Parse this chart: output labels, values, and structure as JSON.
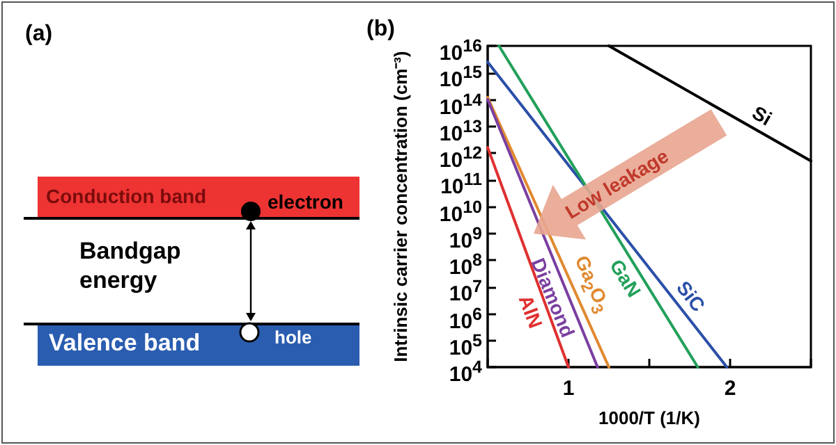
{
  "chart_data": [
    {
      "type": "other",
      "title": "(a)",
      "annotations": [
        "Conduction band",
        "electron",
        "Bandgap energy",
        "Valence band",
        "hole"
      ]
    },
    {
      "type": "line",
      "title": "(b)",
      "xlabel": "1000/T (1/K)",
      "ylabel": "Intrinsic carrier concentration (cm⁻³)",
      "log": "y",
      "grid": false,
      "legend": false,
      "marker": "none",
      "line_style": "solid",
      "xlim": [
        0.5,
        2.5
      ],
      "xticks": [
        {
          "value": 0.5,
          "label": null
        },
        1,
        {
          "value": 1.5,
          "label": null
        },
        2,
        {
          "value": 2.5,
          "label": null
        }
      ],
      "ylim": [
        10000,
        10000000000000000
      ],
      "yticks": [
        {
          "value": 10000,
          "label": "10$^{4}$"
        },
        {
          "value": 100000,
          "label": "10$^{5}$"
        },
        {
          "value": 1000000,
          "label": "10$^{6}$"
        },
        {
          "value": 10000000,
          "label": "10$^{7}$"
        },
        {
          "value": 100000000,
          "label": "10$^{8}$"
        },
        {
          "value": 1000000000,
          "label": "10$^{9}$"
        },
        {
          "value": 10000000000,
          "label": "10$^{10}$"
        },
        {
          "value": 100000000000,
          "label": "10$^{11}$"
        },
        {
          "value": 1000000000000,
          "label": "10$^{12}$"
        },
        {
          "value": 10000000000000,
          "label": "10$^{13}$"
        },
        {
          "value": 100000000000000,
          "label": "10$^{14}$"
        },
        {
          "value": 1000000000000000,
          "label": "10$^{15}$"
        },
        {
          "value": 10000000000000000,
          "label": "10$^{16}$"
        }
      ],
      "annotations": [
        "Low leakage"
      ],
      "series": [
        {
          "name": "Si",
          "color": "#000000",
          "x": [
            1.25,
            2.5
          ],
          "values": [
            10000000000000000,
            500000000000
          ]
        },
        {
          "name": "SiC",
          "color": "#2b4fa8",
          "x": [
            0.5,
            1.98
          ],
          "values": [
            2500000000000000,
            10000
          ]
        },
        {
          "name": "GaN",
          "color": "#22a05a",
          "x": [
            0.57,
            1.8
          ],
          "values": [
            10000000000000000,
            10000
          ]
        },
        {
          "name": "Ga$_{2}$O$_{3}$",
          "color": "#e08a30",
          "x": [
            0.5,
            1.25
          ],
          "values": [
            120000000000000,
            10000
          ]
        },
        {
          "name": "Diamond",
          "color": "#7a3fa0",
          "x": [
            0.5,
            1.18
          ],
          "values": [
            100000000000000,
            10000
          ]
        },
        {
          "name": "AlN",
          "color": "#e03030",
          "x": [
            0.5,
            1.0
          ],
          "values": [
            1600000000000,
            10000
          ]
        }
      ]
    }
  ]
}
